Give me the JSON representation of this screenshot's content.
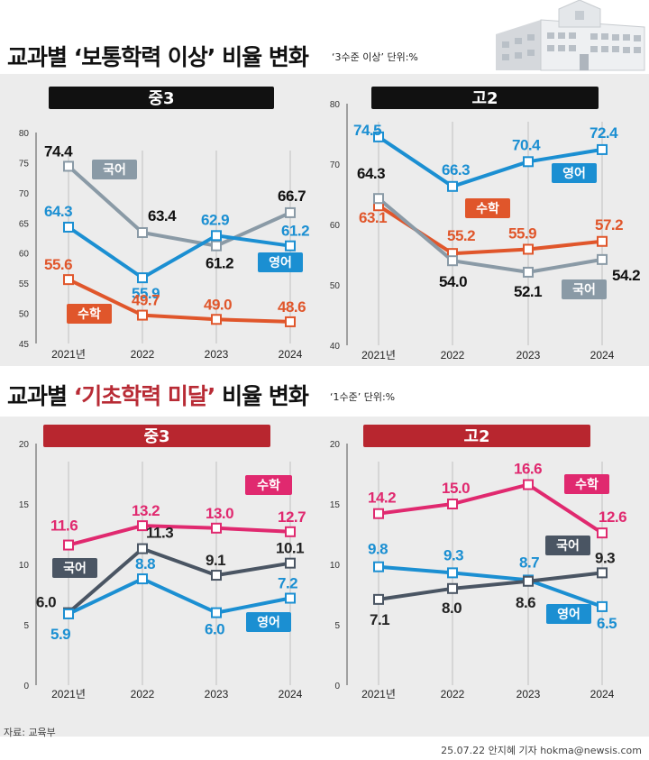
{
  "section1": {
    "title_prefix": "교과별 ",
    "title_highlight": "‘보통학력 이상’",
    "title_suffix": " 비율 변화",
    "unit_note": "‘3수준 이상’ 단위:%"
  },
  "section2": {
    "title_prefix": "교과별 ",
    "title_highlight": "‘기초학력 미달’",
    "title_suffix": " 비율 변화",
    "unit_note": "‘1수준’ 단위:%"
  },
  "footer": {
    "source": "자료: 교육부",
    "credit": "25.07.22 안지혜 기자 hokma@newsis.com"
  },
  "colors": {
    "korean": "#8a9aa6",
    "korean_dark": "#4a5563",
    "math": "#e0562b",
    "english": "#1b8fd2",
    "math2": "#e0296f",
    "banner1": "#111111",
    "banner2": "#b8262f",
    "highlight": "#b82b35"
  },
  "chart_data": [
    {
      "id": "c1",
      "type": "line",
      "title": "중3",
      "categories": [
        "2021년",
        "2022",
        "2023",
        "2024"
      ],
      "ylim": [
        45,
        80
      ],
      "yticks": [
        45,
        50,
        55,
        60,
        65,
        70,
        75,
        80
      ],
      "series": [
        {
          "name": "국어",
          "values": [
            74.4,
            63.4,
            61.2,
            66.7
          ],
          "labels": [
            "74.4",
            "63.4",
            "61.2",
            "66.7"
          ],
          "color": "#8a9aa6",
          "label_color": "#111111"
        },
        {
          "name": "영어",
          "values": [
            64.3,
            55.9,
            62.9,
            61.2
          ],
          "labels": [
            "64.3",
            "55.9",
            "62.9",
            "61.2"
          ],
          "color": "#1b8fd2",
          "label_color": "#1b8fd2"
        },
        {
          "name": "수학",
          "values": [
            55.6,
            49.7,
            49.0,
            48.6
          ],
          "labels": [
            "55.6",
            "49.7",
            "49.0",
            "48.6"
          ],
          "color": "#e0562b",
          "label_color": "#e0562b"
        }
      ]
    },
    {
      "id": "c2",
      "type": "line",
      "title": "고2",
      "categories": [
        "2021년",
        "2022",
        "2023",
        "2024"
      ],
      "ylim": [
        40,
        80
      ],
      "yticks": [
        40,
        50,
        60,
        70,
        80
      ],
      "series": [
        {
          "name": "영어",
          "values": [
            74.5,
            66.3,
            70.4,
            72.4
          ],
          "labels": [
            "74.5",
            "66.3",
            "70.4",
            "72.4"
          ],
          "color": "#1b8fd2",
          "label_color": "#1b8fd2"
        },
        {
          "name": "수학",
          "values": [
            63.1,
            55.2,
            55.9,
            57.2
          ],
          "labels": [
            "63.1",
            "55.2",
            "55.9",
            "57.2"
          ],
          "color": "#e0562b",
          "label_color": "#e0562b"
        },
        {
          "name": "국어",
          "values": [
            64.3,
            54.0,
            52.1,
            54.2
          ],
          "labels": [
            "64.3",
            "54.0",
            "52.1",
            "54.2"
          ],
          "color": "#8a9aa6",
          "label_color": "#111111"
        }
      ]
    },
    {
      "id": "c3",
      "type": "line",
      "title": "중3",
      "categories": [
        "2021년",
        "2022",
        "2023",
        "2024"
      ],
      "ylim": [
        0,
        20
      ],
      "yticks": [
        0,
        5,
        10,
        15,
        20
      ],
      "series": [
        {
          "name": "수학",
          "values": [
            11.6,
            13.2,
            13.0,
            12.7
          ],
          "labels": [
            "11.6",
            "13.2",
            "13.0",
            "12.7"
          ],
          "color": "#e0296f",
          "label_color": "#e0296f"
        },
        {
          "name": "국어",
          "values": [
            6.0,
            11.3,
            9.1,
            10.1
          ],
          "labels": [
            "6.0",
            "11.3",
            "9.1",
            "10.1"
          ],
          "color": "#4a5563",
          "label_color": "#222222"
        },
        {
          "name": "영어",
          "values": [
            5.9,
            8.8,
            6.0,
            7.2
          ],
          "labels": [
            "5.9",
            "8.8",
            "6.0",
            "7.2"
          ],
          "color": "#1b8fd2",
          "label_color": "#1b8fd2"
        }
      ]
    },
    {
      "id": "c4",
      "type": "line",
      "title": "고2",
      "categories": [
        "2021년",
        "2022",
        "2023",
        "2024"
      ],
      "ylim": [
        0,
        20
      ],
      "yticks": [
        0,
        5,
        10,
        15,
        20
      ],
      "series": [
        {
          "name": "수학",
          "values": [
            14.2,
            15.0,
            16.6,
            12.6
          ],
          "labels": [
            "14.2",
            "15.0",
            "16.6",
            "12.6"
          ],
          "color": "#e0296f",
          "label_color": "#e0296f"
        },
        {
          "name": "영어",
          "values": [
            9.8,
            9.3,
            8.7,
            6.5
          ],
          "labels": [
            "9.8",
            "9.3",
            "8.7",
            "6.5"
          ],
          "color": "#1b8fd2",
          "label_color": "#1b8fd2"
        },
        {
          "name": "국어",
          "values": [
            7.1,
            8.0,
            8.6,
            9.3
          ],
          "labels": [
            "7.1",
            "8.0",
            "8.6",
            "9.3"
          ],
          "color": "#4a5563",
          "label_color": "#222222"
        }
      ]
    }
  ]
}
